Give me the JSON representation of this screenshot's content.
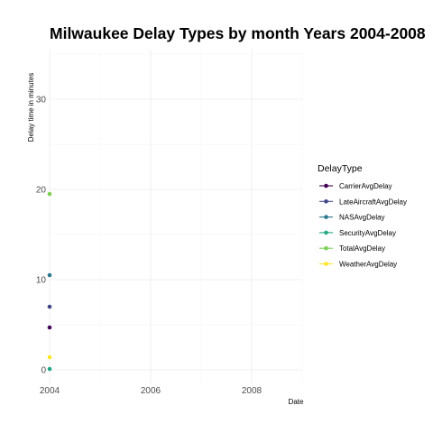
{
  "chart_data": {
    "type": "line",
    "title": "Milwaukee Delay Types by month Years 2004-2008",
    "xlabel": "Date",
    "ylabel": "Delay time in minutes",
    "xlim": [
      2004,
      2009
    ],
    "ylim": [
      -1.5,
      35.5
    ],
    "x_ticks": [
      2004,
      2006,
      2008
    ],
    "y_ticks": [
      0,
      10,
      20,
      30
    ],
    "grid": true,
    "legend": {
      "title": "DelayType",
      "position": "right"
    },
    "series": [
      {
        "name": "CarrierAvgDelay",
        "color": "#440154",
        "points": [
          {
            "x": 2004,
            "y": 4.7
          }
        ]
      },
      {
        "name": "LateAircraftAvgDelay",
        "color": "#414487",
        "points": [
          {
            "x": 2004,
            "y": 7.0
          }
        ]
      },
      {
        "name": "NASAvgDelay",
        "color": "#2A788E",
        "points": [
          {
            "x": 2004,
            "y": 10.5
          }
        ]
      },
      {
        "name": "SecurityAvgDelay",
        "color": "#22A884",
        "points": [
          {
            "x": 2004,
            "y": 0.1
          }
        ]
      },
      {
        "name": "TotalAvgDelay",
        "color": "#7AD151",
        "points": [
          {
            "x": 2004,
            "y": 19.5
          }
        ]
      },
      {
        "name": "WeatherAvgDelay",
        "color": "#FDE725",
        "points": [
          {
            "x": 2004,
            "y": 1.4
          }
        ]
      }
    ]
  }
}
